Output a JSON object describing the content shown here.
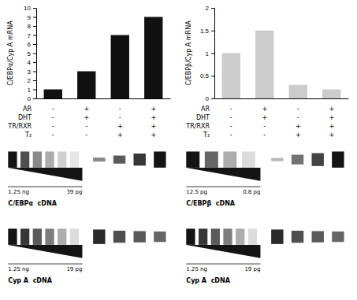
{
  "chart_data": [
    {
      "type": "bar",
      "categories": [
        null,
        null,
        null,
        null
      ],
      "values": [
        1,
        3,
        7,
        9
      ],
      "ylabel": "C/EBPα/Cyp A mRNA",
      "ylim": [
        0,
        10
      ],
      "yticks": [
        0,
        1,
        2,
        3,
        4,
        5,
        6,
        7,
        8,
        9,
        10
      ],
      "color": "#111111",
      "row_labels": [
        "AR",
        "DHT",
        "TR/RXR",
        "T₃"
      ],
      "conditions": [
        [
          "-",
          "-",
          "-",
          "-"
        ],
        [
          "+",
          "+",
          "-",
          "-"
        ],
        [
          "-",
          "-",
          "+",
          "+"
        ],
        [
          "+",
          "+",
          "+",
          "+"
        ]
      ]
    },
    {
      "type": "bar",
      "categories": [
        null,
        null,
        null,
        null
      ],
      "values": [
        1,
        1.5,
        0.3,
        0.2
      ],
      "ylabel": "C/EBPβ/Cyp A mRNA",
      "ylim": [
        0,
        2
      ],
      "yticks": [
        0,
        0.5,
        1,
        1.5,
        2
      ],
      "color": "#cccccc",
      "row_labels": [
        "AR",
        "DHT",
        "TR/RXR",
        "T₃"
      ],
      "conditions": [
        [
          "-",
          "-",
          "-",
          "-"
        ],
        [
          "+",
          "+",
          "-",
          "-"
        ],
        [
          "-",
          "-",
          "+",
          "+"
        ],
        [
          "+",
          "+",
          "+",
          "+"
        ]
      ]
    },
    {
      "type": "gel",
      "title": "C/EBPα  cDNA",
      "annotations": [
        "1.25 ng",
        "39 pg"
      ],
      "color": "#141414",
      "gradient": [
        1.0,
        0.75,
        0.5,
        0.35,
        0.2,
        0.1
      ],
      "samples": [
        0.25,
        0.5,
        0.75,
        1.0
      ],
      "sample_intensity": [
        0.5,
        0.7,
        0.85,
        1.0
      ]
    },
    {
      "type": "gel",
      "title": "C/EBPβ  cDNA",
      "annotations": [
        "12.5 pg",
        "0.8 pg"
      ],
      "color": "#141414",
      "gradient": [
        1.0,
        0.65,
        0.35,
        0.15
      ],
      "samples": [
        0.2,
        0.6,
        0.8,
        1.0
      ],
      "sample_intensity": [
        0.3,
        0.6,
        0.8,
        1.0
      ]
    },
    {
      "type": "gel",
      "title": "Cyp A  cDNA",
      "annotations": [
        "1.25 ng",
        "19 pg"
      ],
      "color": "#141414",
      "gradient": [
        1.0,
        0.85,
        0.7,
        0.55,
        0.35,
        0.15
      ],
      "samples": [
        0.9,
        0.75,
        0.7,
        0.65
      ],
      "sample_intensity": [
        0.9,
        0.75,
        0.7,
        0.65
      ]
    },
    {
      "type": "gel",
      "title": "Cyp A  cDNA",
      "annotations": [
        "1.25 ng",
        "19 pg"
      ],
      "color": "#141414",
      "gradient": [
        1.0,
        0.85,
        0.7,
        0.55,
        0.35,
        0.15
      ],
      "samples": [
        0.9,
        0.75,
        0.7,
        0.65
      ],
      "sample_intensity": [
        0.9,
        0.75,
        0.7,
        0.65
      ]
    }
  ]
}
